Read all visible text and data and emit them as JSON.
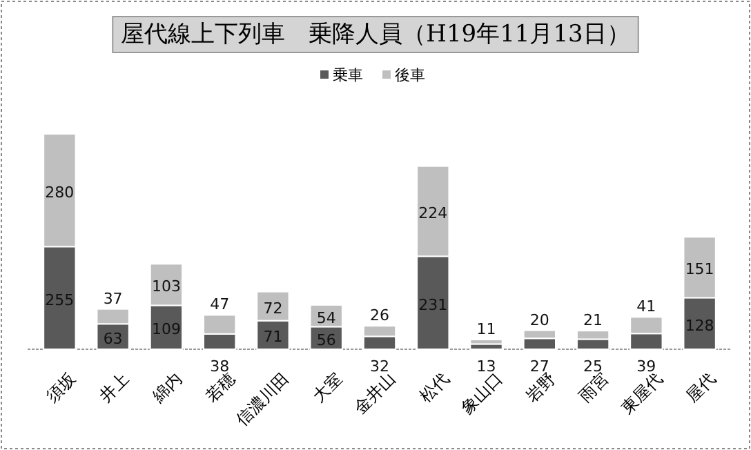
{
  "chart_data": {
    "type": "bar",
    "title": "屋代線上下列車　乗降人員（H19年11月13日）",
    "stacked": true,
    "data_labels": true,
    "legend": "top",
    "categories": [
      "須坂",
      "井上",
      "綿内",
      "若穂",
      "信濃川田",
      "大室",
      "金井山",
      "松代",
      "象山口",
      "岩野",
      "雨宮",
      "東屋代",
      "屋代"
    ],
    "series": [
      {
        "name": "乗車",
        "color": "#595959",
        "values": [
          255,
          63,
          109,
          38,
          71,
          56,
          32,
          231,
          13,
          27,
          25,
          39,
          128
        ]
      },
      {
        "name": "後車",
        "color": "#bfbfbf",
        "values": [
          280,
          37,
          103,
          47,
          72,
          54,
          26,
          224,
          11,
          20,
          21,
          41,
          151
        ]
      }
    ]
  }
}
